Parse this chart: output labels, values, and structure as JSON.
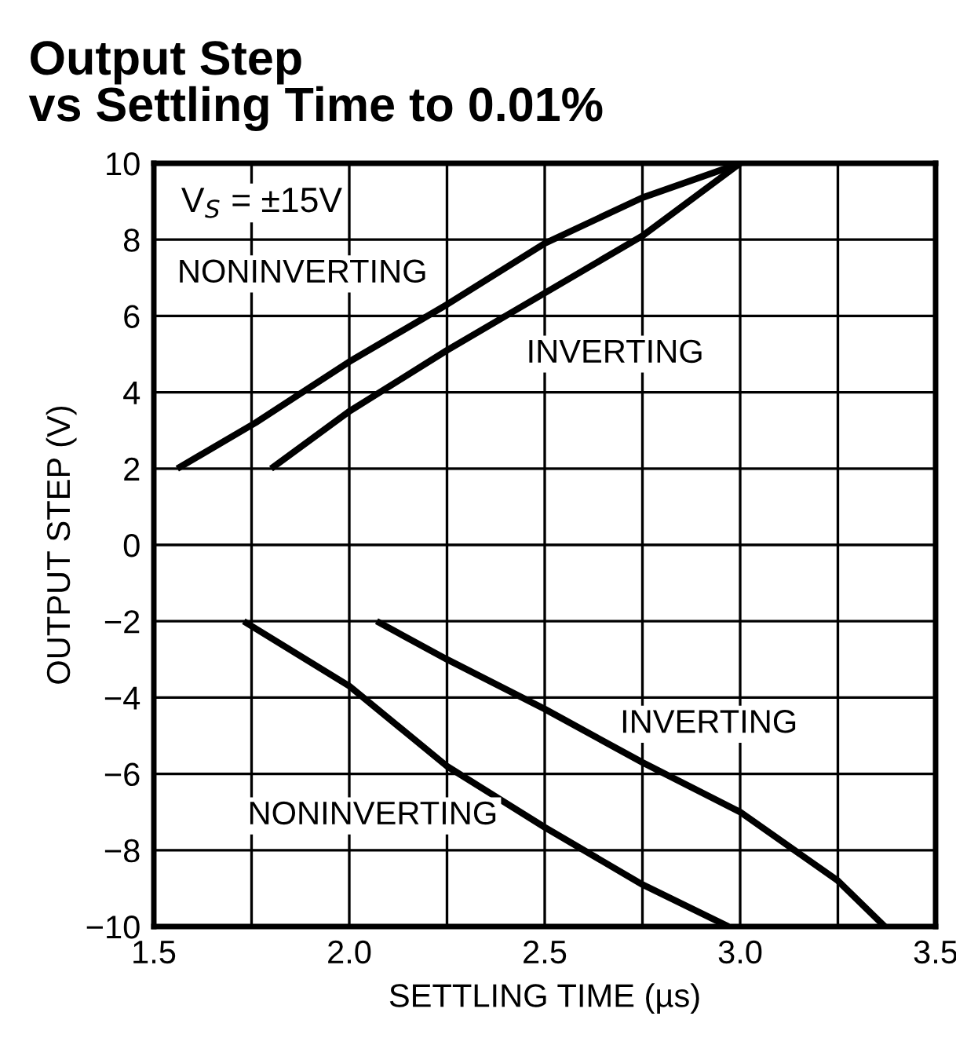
{
  "chart_data": {
    "type": "line",
    "title": "Output Step\nvs Settling Time to 0.01%",
    "xlabel": "SETTLING TIME (µs)",
    "ylabel": "OUTPUT STEP (V)",
    "series": [
      {
        "name": "NONINVERTING",
        "color": "#000000",
        "x": [
          1.56,
          1.76,
          2.0,
          2.25,
          2.5,
          2.75,
          3.0
        ],
        "values": [
          2,
          3.2,
          4.8,
          6.3,
          7.9,
          9.1,
          10
        ]
      },
      {
        "name": "INVERTING",
        "color": "#000000",
        "x": [
          1.8,
          2.0,
          2.25,
          2.5,
          2.75,
          3.0
        ],
        "values": [
          2,
          3.5,
          5.1,
          6.6,
          8.1,
          10
        ]
      },
      {
        "name": "NONINVERTING",
        "color": "#000000",
        "x": [
          1.73,
          2.0,
          2.25,
          2.5,
          2.75,
          2.97
        ],
        "values": [
          -2,
          -3.7,
          -5.8,
          -7.4,
          -8.9,
          -10
        ]
      },
      {
        "name": "INVERTING",
        "color": "#000000",
        "x": [
          2.07,
          2.25,
          2.5,
          2.75,
          3.0,
          3.25,
          3.37
        ],
        "values": [
          -2,
          -3.0,
          -4.3,
          -5.7,
          -7.0,
          -8.8,
          -10
        ]
      }
    ],
    "annotations": [
      "V$_{S}$ = ±15V"
    ],
    "xlim": [
      1.5,
      3.5
    ],
    "ylim": [
      -10,
      10
    ],
    "xticks": [
      1.5,
      {
        "value": 1.75,
        "label": null
      },
      {
        "value": 2,
        "label": "2.0"
      },
      {
        "value": 2.25,
        "label": null
      },
      2.5,
      {
        "value": 2.75,
        "label": null
      },
      {
        "value": 3,
        "label": "3.0"
      },
      {
        "value": 3.25,
        "label": null
      },
      3.5
    ],
    "yticks": [
      -10,
      -8,
      -6,
      -4,
      -2,
      0,
      2,
      4,
      6,
      8,
      10
    ],
    "grid": true,
    "marker": "none",
    "line_style": "solid"
  }
}
